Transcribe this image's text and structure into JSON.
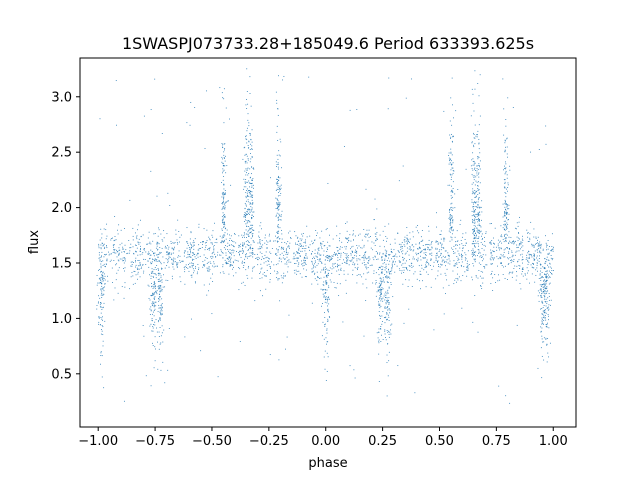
{
  "chart_data": {
    "type": "scatter",
    "title": "1SWASPJ073733.28+185049.6 Period 633393.625s",
    "xlabel": "phase",
    "ylabel": "flux",
    "xlim": [
      -1.08,
      1.1
    ],
    "ylim": [
      0.02,
      3.35
    ],
    "xticks": [
      -1.0,
      -0.75,
      -0.5,
      -0.25,
      0.0,
      0.25,
      0.5,
      0.75,
      1.0
    ],
    "xtick_labels": [
      "−1.00",
      "−0.75",
      "−0.50",
      "−0.25",
      "0.00",
      "0.25",
      "0.50",
      "0.75",
      "1.00"
    ],
    "yticks": [
      0.5,
      1.0,
      1.5,
      2.0,
      2.5,
      3.0
    ],
    "ytick_labels": [
      "0.5",
      "1.0",
      "1.5",
      "2.0",
      "2.5",
      "3.0"
    ],
    "grid": false,
    "marker_color": "#1f77b4",
    "series": [
      {
        "values_description": "phase-folded photometry, points repeat with period 1 in phase",
        "baseline_flux": 1.57,
        "baseline_scatter": 0.12,
        "x": [
          -1.0,
          -0.97,
          -0.93,
          -0.9,
          -0.86,
          -0.82,
          -0.78,
          -0.75,
          -0.72,
          -0.68,
          -0.64,
          -0.6,
          -0.56,
          -0.52,
          -0.48,
          -0.44,
          -0.4,
          -0.36,
          -0.33,
          -0.3,
          -0.27,
          -0.24,
          -0.21,
          -0.18,
          -0.14,
          -0.1,
          -0.06,
          -0.03,
          0.0,
          0.03,
          0.07,
          0.1,
          0.14,
          0.18,
          0.22,
          0.25,
          0.28,
          0.32,
          0.36,
          0.4,
          0.44,
          0.48,
          0.52,
          0.56,
          0.6,
          0.64,
          0.67,
          0.7,
          0.73,
          0.76,
          0.79,
          0.82,
          0.86,
          0.9,
          0.94,
          0.97,
          1.0
        ],
        "y": [
          1.6,
          1.55,
          1.5,
          1.55,
          1.6,
          1.52,
          1.45,
          1.4,
          1.5,
          1.58,
          1.6,
          1.55,
          1.58,
          1.55,
          1.6,
          1.8,
          1.6,
          1.9,
          1.7,
          1.65,
          1.8,
          1.7,
          1.85,
          1.62,
          1.6,
          1.55,
          1.55,
          1.5,
          1.4,
          1.55,
          1.6,
          1.52,
          1.5,
          1.55,
          1.6,
          1.45,
          1.5,
          1.55,
          1.6,
          1.55,
          1.58,
          1.55,
          1.6,
          1.8,
          1.6,
          1.9,
          1.7,
          1.65,
          1.8,
          1.7,
          1.85,
          1.62,
          1.6,
          1.55,
          1.5,
          1.45,
          1.6
        ]
      }
    ]
  }
}
